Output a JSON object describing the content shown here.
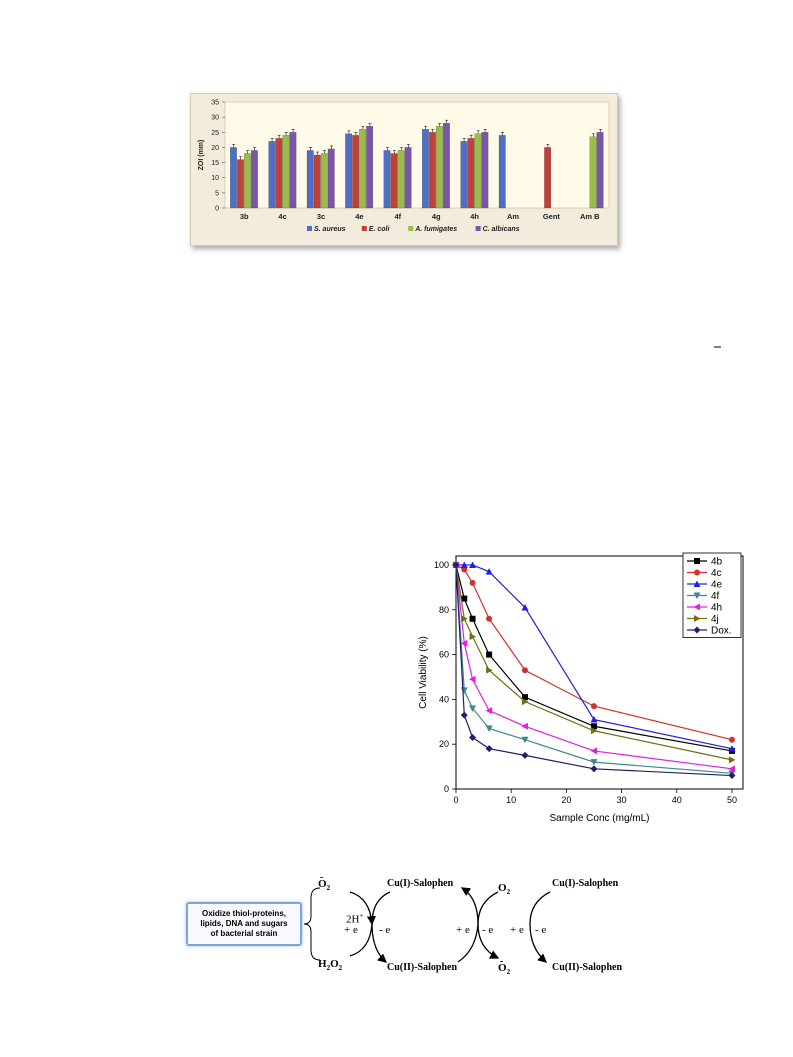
{
  "chart_data": [
    {
      "type": "bar",
      "ylabel": "ZOI (mm)",
      "ylim": [
        0,
        35
      ],
      "yticks": [
        0,
        5,
        10,
        15,
        20,
        25,
        30,
        35
      ],
      "categories": [
        "3b",
        "4c",
        "3c",
        "4e",
        "4f",
        "4g",
        "4h",
        "Am",
        "Gent",
        "Am B"
      ],
      "legend_position": "bottom",
      "series": [
        {
          "name": "S. aureus",
          "color": "#4f6fc4",
          "values": [
            20,
            22,
            19,
            24.5,
            19,
            26,
            22,
            24,
            null,
            null
          ]
        },
        {
          "name": "E. coli",
          "color": "#c0403a",
          "values": [
            16,
            23,
            17.5,
            24,
            18,
            25,
            23,
            null,
            20,
            null
          ]
        },
        {
          "name": "A. fumigates",
          "color": "#9bbb4a",
          "values": [
            18,
            24,
            18,
            26,
            19,
            27,
            24.5,
            null,
            null,
            23.5
          ]
        },
        {
          "name": "C. albicans",
          "color": "#7b55a8",
          "values": [
            19,
            25,
            19.5,
            27,
            20,
            28,
            25,
            null,
            null,
            25
          ]
        }
      ]
    },
    {
      "type": "line",
      "xlabel": "Sample Conc (mg/mL)",
      "ylabel": "Cell Viability (%)",
      "xlim": [
        0,
        52
      ],
      "ylim": [
        0,
        104
      ],
      "xticks": [
        0,
        10,
        20,
        30,
        40,
        50
      ],
      "yticks": [
        0,
        20,
        40,
        60,
        80,
        100
      ],
      "legend_position": "top-right",
      "x": [
        0,
        1.5,
        3,
        6,
        12.5,
        25,
        50
      ],
      "series": [
        {
          "name": "4b",
          "color": "#000000",
          "marker": "square",
          "values": [
            100,
            85,
            76,
            60,
            41,
            28,
            17
          ]
        },
        {
          "name": "4c",
          "color": "#d03030",
          "marker": "circle",
          "values": [
            100,
            98,
            92,
            76,
            53,
            37,
            22
          ]
        },
        {
          "name": "4e",
          "color": "#2020e0",
          "marker": "triangle-up",
          "values": [
            100,
            100,
            100,
            97,
            81,
            31,
            18
          ]
        },
        {
          "name": "4f",
          "color": "#3a8a8a",
          "marker": "triangle-down",
          "values": [
            100,
            44,
            36,
            27,
            22,
            12,
            7
          ]
        },
        {
          "name": "4h",
          "color": "#e020e0",
          "marker": "triangle-left",
          "values": [
            100,
            65,
            49,
            35,
            28,
            17,
            9
          ]
        },
        {
          "name": "4j",
          "color": "#707010",
          "marker": "triangle-right",
          "values": [
            100,
            76,
            68,
            53,
            39,
            26,
            13
          ]
        },
        {
          "name": "Dox.",
          "color": "#20206a",
          "marker": "diamond",
          "values": [
            100,
            33,
            23,
            18,
            15,
            9,
            6
          ]
        }
      ]
    }
  ],
  "mechanism": {
    "box_text": [
      "Oxidize thiol-proteins,",
      "lipids,  DNA and sugars",
      "of bacterial strain"
    ],
    "o2_radical_top": "O",
    "h2o2": "H",
    "two_h": "2H",
    "plus_e": "+ e",
    "minus_e": "- e",
    "cu1": "Cu(I)-Salophen",
    "cu2": "Cu(II)-Salophen",
    "o2": "O",
    "o2_radical_bottom": "O"
  }
}
